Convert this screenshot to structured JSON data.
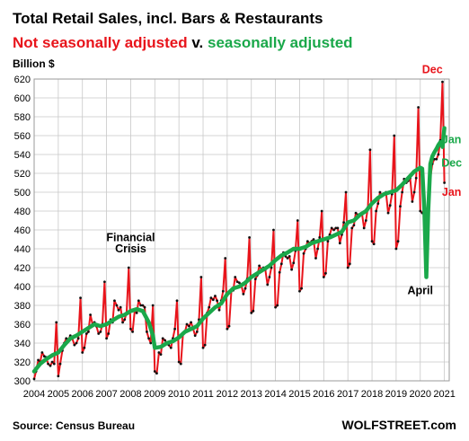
{
  "chart_data": {
    "type": "line",
    "title": "Total Retail Sales, incl. Bars & Restaurants",
    "subtitle": {
      "part1": "Not seasonally adjusted",
      "sep": " v. ",
      "part2": "seasonally adjusted"
    },
    "ylabel": "Billion $",
    "ylim": [
      300,
      620
    ],
    "yticks": [
      300,
      320,
      340,
      360,
      380,
      400,
      420,
      440,
      460,
      480,
      500,
      520,
      540,
      560,
      580,
      600,
      620
    ],
    "xlim": [
      2004.0,
      2021.2
    ],
    "xticks": [
      "2004",
      "2005",
      "2006",
      "2007",
      "2008",
      "2009",
      "2010",
      "2011",
      "2012",
      "2013",
      "2014",
      "2015",
      "2016",
      "2017",
      "2018",
      "2019",
      "2020",
      "2021"
    ],
    "grid": true,
    "series": [
      {
        "name": "Not seasonally adjusted",
        "color": "#e8141b",
        "x": [
          2004.0,
          2004.08,
          2004.17,
          2004.25,
          2004.33,
          2004.42,
          2004.5,
          2004.58,
          2004.67,
          2004.75,
          2004.83,
          2004.92,
          2005.0,
          2005.08,
          2005.17,
          2005.25,
          2005.33,
          2005.42,
          2005.5,
          2005.58,
          2005.67,
          2005.75,
          2005.83,
          2005.92,
          2006.0,
          2006.08,
          2006.17,
          2006.25,
          2006.33,
          2006.42,
          2006.5,
          2006.58,
          2006.67,
          2006.75,
          2006.83,
          2006.92,
          2007.0,
          2007.08,
          2007.17,
          2007.25,
          2007.33,
          2007.42,
          2007.5,
          2007.58,
          2007.67,
          2007.75,
          2007.83,
          2007.92,
          2008.0,
          2008.08,
          2008.17,
          2008.25,
          2008.33,
          2008.42,
          2008.5,
          2008.58,
          2008.67,
          2008.75,
          2008.83,
          2008.92,
          2009.0,
          2009.08,
          2009.17,
          2009.25,
          2009.33,
          2009.42,
          2009.5,
          2009.58,
          2009.67,
          2009.75,
          2009.83,
          2009.92,
          2010.0,
          2010.08,
          2010.17,
          2010.25,
          2010.33,
          2010.42,
          2010.5,
          2010.58,
          2010.67,
          2010.75,
          2010.83,
          2010.92,
          2011.0,
          2011.08,
          2011.17,
          2011.25,
          2011.33,
          2011.42,
          2011.5,
          2011.58,
          2011.67,
          2011.75,
          2011.83,
          2011.92,
          2012.0,
          2012.08,
          2012.17,
          2012.25,
          2012.33,
          2012.42,
          2012.5,
          2012.58,
          2012.67,
          2012.75,
          2012.83,
          2012.92,
          2013.0,
          2013.08,
          2013.17,
          2013.25,
          2013.33,
          2013.42,
          2013.5,
          2013.58,
          2013.67,
          2013.75,
          2013.83,
          2013.92,
          2014.0,
          2014.08,
          2014.17,
          2014.25,
          2014.33,
          2014.42,
          2014.5,
          2014.58,
          2014.67,
          2014.75,
          2014.83,
          2014.92,
          2015.0,
          2015.08,
          2015.17,
          2015.25,
          2015.33,
          2015.42,
          2015.5,
          2015.58,
          2015.67,
          2015.75,
          2015.83,
          2015.92,
          2016.0,
          2016.08,
          2016.17,
          2016.25,
          2016.33,
          2016.42,
          2016.5,
          2016.58,
          2016.67,
          2016.75,
          2016.83,
          2016.92,
          2017.0,
          2017.08,
          2017.17,
          2017.25,
          2017.33,
          2017.42,
          2017.5,
          2017.58,
          2017.67,
          2017.75,
          2017.83,
          2017.92,
          2018.0,
          2018.08,
          2018.17,
          2018.25,
          2018.33,
          2018.42,
          2018.5,
          2018.58,
          2018.67,
          2018.75,
          2018.83,
          2018.92,
          2019.0,
          2019.08,
          2019.17,
          2019.25,
          2019.33,
          2019.42,
          2019.5,
          2019.58,
          2019.67,
          2019.75,
          2019.83,
          2019.92,
          2020.0,
          2020.08,
          2020.17,
          2020.25,
          2020.33,
          2020.42,
          2020.5,
          2020.58,
          2020.67,
          2020.75,
          2020.83,
          2020.92,
          2021.0
        ],
        "values": [
          302,
          310,
          322,
          320,
          330,
          326,
          325,
          318,
          316,
          320,
          318,
          362,
          305,
          318,
          332,
          340,
          345,
          344,
          348,
          345,
          338,
          340,
          345,
          388,
          330,
          335,
          350,
          352,
          370,
          360,
          362,
          358,
          350,
          352,
          360,
          405,
          345,
          350,
          365,
          362,
          385,
          380,
          375,
          378,
          362,
          365,
          372,
          420,
          355,
          352,
          375,
          372,
          385,
          380,
          380,
          378,
          352,
          345,
          340,
          380,
          310,
          308,
          330,
          328,
          345,
          343,
          340,
          338,
          335,
          345,
          355,
          385,
          320,
          318,
          350,
          352,
          360,
          358,
          362,
          356,
          348,
          352,
          365,
          410,
          335,
          338,
          372,
          378,
          388,
          386,
          390,
          385,
          375,
          385,
          395,
          430,
          355,
          358,
          395,
          396,
          410,
          405,
          404,
          402,
          392,
          398,
          408,
          452,
          372,
          374,
          408,
          412,
          422,
          418,
          420,
          418,
          402,
          410,
          420,
          460,
          378,
          380,
          415,
          424,
          436,
          432,
          430,
          432,
          418,
          425,
          438,
          470,
          395,
          398,
          435,
          440,
          448,
          446,
          448,
          450,
          430,
          440,
          452,
          480,
          410,
          414,
          448,
          455,
          462,
          460,
          462,
          462,
          446,
          455,
          468,
          500,
          420,
          424,
          462,
          465,
          478,
          476,
          476,
          478,
          462,
          470,
          484,
          545,
          448,
          445,
          480,
          488,
          500,
          496,
          498,
          500,
          478,
          486,
          498,
          560,
          440,
          448,
          485,
          500,
          514,
          510,
          512,
          515,
          490,
          500,
          515,
          590,
          480,
          478,
          482,
          410,
          480,
          515,
          530,
          535,
          535,
          540,
          555,
          617,
          510
        ]
      },
      {
        "name": "Seasonally adjusted",
        "color": "#1aa84a",
        "x": [
          2004.0,
          2004.25,
          2004.5,
          2004.75,
          2005.0,
          2005.25,
          2005.5,
          2005.75,
          2006.0,
          2006.25,
          2006.5,
          2006.75,
          2007.0,
          2007.25,
          2007.5,
          2007.75,
          2008.0,
          2008.25,
          2008.5,
          2008.75,
          2008.92,
          2009.0,
          2009.25,
          2009.5,
          2009.75,
          2010.0,
          2010.25,
          2010.5,
          2010.75,
          2011.0,
          2011.25,
          2011.5,
          2011.75,
          2012.0,
          2012.25,
          2012.5,
          2012.75,
          2013.0,
          2013.25,
          2013.5,
          2013.75,
          2014.0,
          2014.25,
          2014.5,
          2014.75,
          2015.0,
          2015.25,
          2015.5,
          2015.75,
          2016.0,
          2016.25,
          2016.5,
          2016.75,
          2017.0,
          2017.25,
          2017.5,
          2017.75,
          2018.0,
          2018.25,
          2018.5,
          2018.75,
          2019.0,
          2019.25,
          2019.5,
          2019.75,
          2020.0,
          2020.08,
          2020.17,
          2020.25,
          2020.33,
          2020.42,
          2020.5,
          2020.58,
          2020.67,
          2020.75,
          2020.83,
          2020.92,
          2021.0
        ],
        "values": [
          310,
          318,
          323,
          327,
          330,
          338,
          345,
          348,
          352,
          356,
          360,
          358,
          360,
          364,
          368,
          370,
          374,
          376,
          374,
          362,
          348,
          335,
          336,
          340,
          342,
          346,
          352,
          355,
          358,
          366,
          372,
          378,
          382,
          392,
          398,
          400,
          404,
          410,
          414,
          418,
          422,
          428,
          433,
          436,
          440,
          440,
          442,
          446,
          448,
          450,
          452,
          455,
          458,
          468,
          470,
          476,
          480,
          488,
          494,
          498,
          500,
          502,
          508,
          515,
          522,
          526,
          525,
          482,
          410,
          480,
          530,
          538,
          542,
          546,
          550,
          553,
          548,
          568
        ]
      }
    ],
    "annotations": [
      {
        "text": "Financial",
        "x": 2008.0,
        "y": 448
      },
      {
        "text": "Crisis",
        "x": 2008.0,
        "y": 436
      },
      {
        "text": "Dec",
        "x": 2020.5,
        "y": 626,
        "color": "#e8141b"
      },
      {
        "text": "Jan",
        "x": 2021.3,
        "y": 552,
        "color": "#1aa84a"
      },
      {
        "text": "Dec",
        "x": 2021.3,
        "y": 527,
        "color": "#1aa84a"
      },
      {
        "text": "Jan",
        "x": 2021.3,
        "y": 496,
        "color": "#e8141b"
      },
      {
        "text": "April",
        "x": 2020.0,
        "y": 392
      }
    ],
    "source": "Source: Census Bureau",
    "brand": "WOLFSTREET.com"
  }
}
